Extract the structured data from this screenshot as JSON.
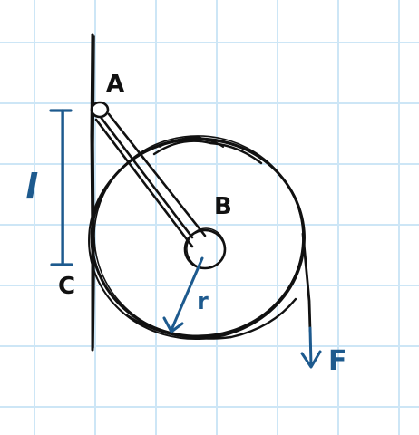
{
  "labels": {
    "A": "A",
    "B": "B",
    "C": "C",
    "r": "r",
    "F": "F",
    "l": "l"
  },
  "colors": {
    "grid": "#cde6f6",
    "ink": "#111111",
    "blue": "#1d5a8e",
    "background": "#ffffff"
  }
}
